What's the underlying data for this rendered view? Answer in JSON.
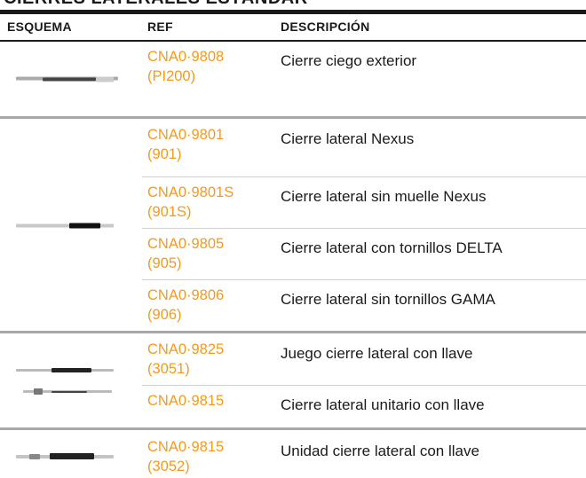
{
  "header": {
    "title": "CIERRES LATERALES ESTÁNDAR",
    "columns": [
      "ESQUEMA",
      "REF",
      "DESCRIPCIÓN"
    ]
  },
  "table": {
    "groups": [
      {
        "rows": [
          {
            "ref": "CNA0·9808",
            "code": "(PI200)",
            "description": "Cierre ciego exterior"
          }
        ]
      },
      {
        "rows": [
          {
            "ref": "CNA0·9801",
            "code": "(901)",
            "description": "Cierre lateral Nexus"
          },
          {
            "ref": "CNA0·9801S",
            "code": "(901S)",
            "description": "Cierre lateral sin muelle Nexus"
          },
          {
            "ref": "CNA0·9805",
            "code": "(905)",
            "description": "Cierre lateral con tornillos DELTA"
          },
          {
            "ref": "CNA0·9806",
            "code": "(906)",
            "description": "Cierre lateral sin tornillos GAMA"
          }
        ]
      },
      {
        "rows": [
          {
            "ref": "CNA0·9825",
            "code": "(3051)",
            "description": "Juego cierre lateral con llave"
          },
          {
            "ref": "CNA0·9815",
            "description": "Cierre lateral unitario con llave"
          }
        ]
      },
      {
        "rows": [
          {
            "ref": "CNA0·9815",
            "code": "(3052)",
            "description": "Unidad cierre lateral con llave"
          }
        ]
      }
    ]
  }
}
